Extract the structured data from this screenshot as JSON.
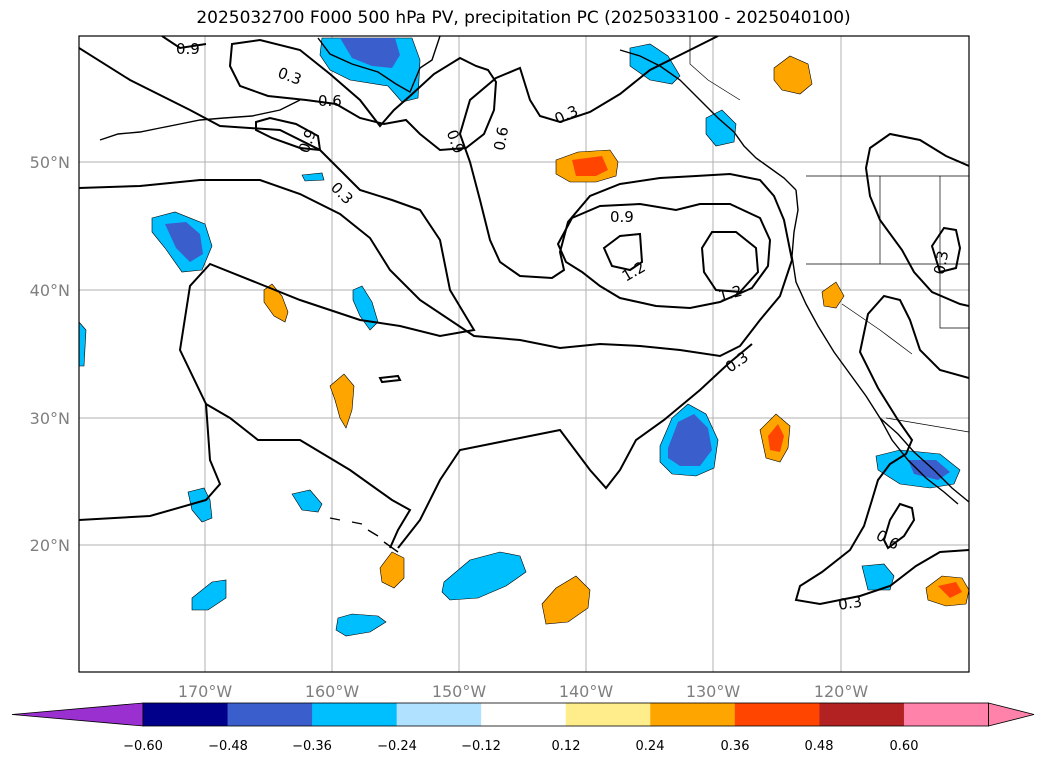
{
  "title": "2025032700 F000 500 hPa PV, precipitation PC (2025033100 - 2025040100)",
  "map": {
    "latitude_labels": [
      "50°N",
      "40°N",
      "30°N",
      "20°N"
    ],
    "longitude_labels": [
      "170°W",
      "160°W",
      "150°W",
      "140°W",
      "130°W",
      "120°W"
    ],
    "gridlines": true,
    "contour_variable": "500 hPa PV",
    "contour_labels": [
      "0.9",
      "0.3",
      "0.6",
      "0.9",
      "0.9",
      "0.6",
      "0.3",
      "0.3",
      "0.9",
      "1.2",
      "1.2",
      "0.3",
      "0.3",
      "0.6",
      "0.3"
    ],
    "shading_variable": "precipitation PC"
  },
  "colorbar": {
    "ticks": [
      "−0.60",
      "−0.48",
      "−0.36",
      "−0.24",
      "−0.12",
      "0.12",
      "0.24",
      "0.36",
      "0.48",
      "0.60"
    ],
    "colors": {
      "below_min": "#9b30d0",
      "bins": [
        "#00008b",
        "#3a5fcd",
        "#00bfff",
        "#b0e2ff",
        "#ffffff",
        "#ffec8b",
        "#ffa500",
        "#ff4500",
        "#b22222",
        "#ff82ab"
      ],
      "above_max": "#ff82ab"
    }
  },
  "palette": {
    "coast": "#000000",
    "grid": "#b0b0b0",
    "contour": "#000000"
  }
}
